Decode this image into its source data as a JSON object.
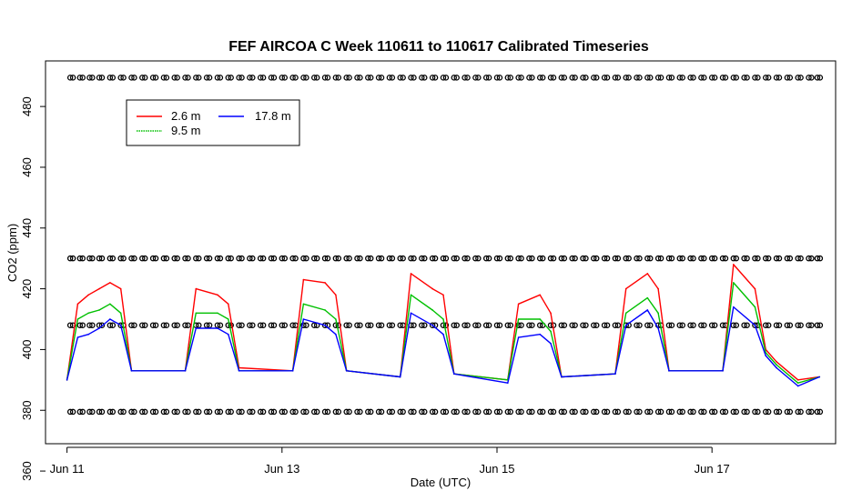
{
  "chart_data": {
    "type": "line",
    "title": "FEF AIRCOA C  Week 110611 to 110617  Calibrated Timeseries",
    "xlabel": "Date (UTC)",
    "ylabel": "CO2 (ppm)",
    "xlim": [
      10.8,
      18.15
    ],
    "ylim": [
      369,
      495
    ],
    "x_ticks": [
      {
        "value": 11,
        "label": "Jun 11"
      },
      {
        "value": 13,
        "label": "Jun 13"
      },
      {
        "value": 15,
        "label": "Jun 15"
      },
      {
        "value": 17,
        "label": "Jun 17"
      }
    ],
    "y_ticks": [
      360,
      380,
      400,
      420,
      440,
      460,
      480
    ],
    "grid": false,
    "legend": {
      "position": "top-left",
      "entries": [
        {
          "name": "2.6 m",
          "color": "#ff0000"
        },
        {
          "name": "9.5 m",
          "color": "#00c000"
        },
        {
          "name": "17.8 m",
          "color": "#0000ff"
        }
      ]
    },
    "series": [
      {
        "name": "2.6 m",
        "color": "#ff0000"
      },
      {
        "name": "9.5 m",
        "color": "#00c000"
      },
      {
        "name": "17.8 m",
        "color": "#0000ff"
      }
    ],
    "x": [
      11.0,
      11.1,
      11.2,
      11.3,
      11.4,
      11.5,
      11.6,
      12.1,
      12.2,
      12.4,
      12.5,
      12.6,
      13.1,
      13.2,
      13.4,
      13.5,
      13.6,
      14.1,
      14.2,
      14.4,
      14.5,
      14.6,
      15.1,
      15.2,
      15.4,
      15.5,
      15.6,
      16.1,
      16.2,
      16.4,
      16.5,
      16.6,
      17.1,
      17.2,
      17.4,
      17.5,
      17.6,
      17.8,
      18.0
    ],
    "values_2_6m": [
      390,
      415,
      418,
      420,
      422,
      420,
      393,
      393,
      420,
      418,
      415,
      394,
      393,
      423,
      422,
      418,
      393,
      391,
      425,
      420,
      418,
      392,
      390,
      415,
      418,
      412,
      391,
      392,
      420,
      425,
      420,
      393,
      393,
      428,
      420,
      400,
      396,
      390,
      391
    ],
    "values_9_5m": [
      390,
      410,
      412,
      413,
      415,
      412,
      393,
      393,
      412,
      412,
      410,
      393,
      393,
      415,
      413,
      410,
      393,
      391,
      418,
      413,
      410,
      392,
      390,
      410,
      410,
      406,
      391,
      392,
      412,
      417,
      412,
      393,
      393,
      422,
      414,
      399,
      395,
      389,
      391
    ],
    "values_17_8m": [
      390,
      404,
      405,
      407,
      410,
      408,
      393,
      393,
      407,
      407,
      405,
      393,
      393,
      410,
      408,
      405,
      393,
      391,
      412,
      408,
      405,
      392,
      389,
      404,
      405,
      402,
      391,
      392,
      408,
      413,
      407,
      393,
      393,
      414,
      408,
      398,
      394,
      388,
      391
    ],
    "calibration_markers": {
      "levels": [
        379.5,
        408,
        430,
        489.5
      ],
      "x": [
        11.03,
        11.12,
        11.21,
        11.3,
        11.4,
        11.5,
        11.6,
        11.7,
        11.8,
        11.9,
        12.0,
        12.1,
        12.2,
        12.3,
        12.4,
        12.5,
        12.6,
        12.7,
        12.8,
        12.9,
        13.0,
        13.1,
        13.2,
        13.3,
        13.4,
        13.5,
        13.6,
        13.7,
        13.8,
        13.9,
        14.0,
        14.1,
        14.2,
        14.3,
        14.4,
        14.5,
        14.6,
        14.7,
        14.8,
        14.9,
        15.0,
        15.1,
        15.2,
        15.3,
        15.4,
        15.5,
        15.6,
        15.7,
        15.8,
        15.9,
        16.0,
        16.1,
        16.2,
        16.3,
        16.4,
        16.5,
        16.6,
        16.7,
        16.8,
        16.9,
        17.0,
        17.1,
        17.2,
        17.3,
        17.4,
        17.5,
        17.6,
        17.7,
        17.8,
        17.9,
        17.98
      ]
    }
  }
}
